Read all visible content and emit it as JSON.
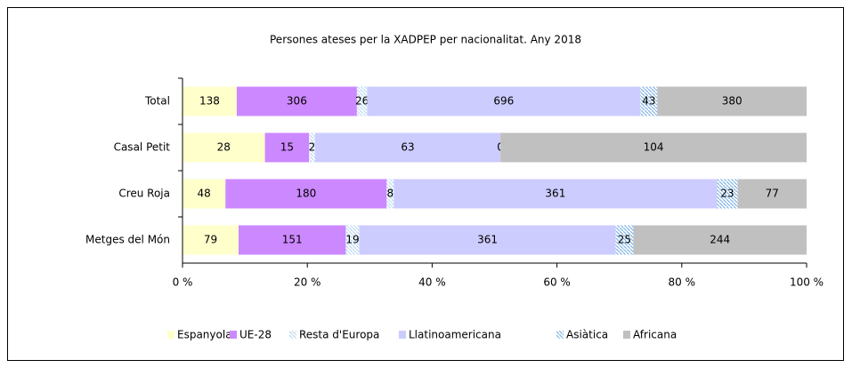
{
  "chart_data": {
    "type": "stacked_bar_100",
    "orientation": "horizontal",
    "title": "Persones ateses per la XADPEP per nacionalitat. Any 2018",
    "categories": [
      "Total",
      "Casal Petit",
      "Creu Roja",
      "Metges del Món"
    ],
    "series": [
      {
        "name": "Espanyola",
        "color": "#ffffcc",
        "values": [
          138,
          28,
          48,
          79
        ]
      },
      {
        "name": "UE-28",
        "color": "#cc88ff",
        "values": [
          306,
          15,
          180,
          151
        ]
      },
      {
        "name": "Resta d'Europa",
        "color": "#bcd8f4",
        "hatch": true,
        "values": [
          26,
          2,
          8,
          19
        ]
      },
      {
        "name": "Llatinoamericana",
        "color": "#ccccff",
        "values": [
          696,
          63,
          361,
          361
        ]
      },
      {
        "name": "Asiàtica",
        "color": "#7fb4e6",
        "hatch": true,
        "values": [
          43,
          0,
          23,
          25
        ]
      },
      {
        "name": "Africana",
        "color": "#c0c0c0",
        "values": [
          380,
          104,
          77,
          244
        ]
      }
    ],
    "xlim": [
      0,
      100
    ],
    "xticks": [
      {
        "value": 0,
        "label": "0 %"
      },
      {
        "value": 20,
        "label": "20 %"
      },
      {
        "value": 40,
        "label": "40 %"
      },
      {
        "value": 60,
        "label": "60 %"
      },
      {
        "value": 80,
        "label": "80 %"
      },
      {
        "value": 100,
        "label": "100 %"
      }
    ],
    "legend": "bottom"
  }
}
